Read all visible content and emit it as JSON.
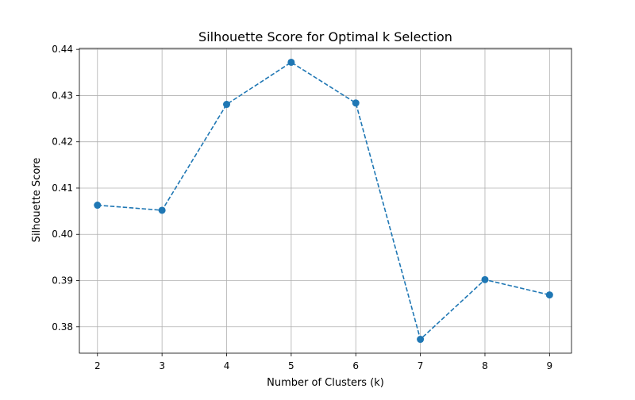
{
  "chart_data": {
    "type": "line",
    "title": "Silhouette Score for Optimal k Selection",
    "xlabel": "Number of Clusters (k)",
    "ylabel": "Silhouette Score",
    "x": [
      2,
      3,
      4,
      5,
      6,
      7,
      8,
      9
    ],
    "series": [
      {
        "values": [
          0.4063,
          0.4052,
          0.4281,
          0.4372,
          0.4284,
          0.3773,
          0.3902,
          0.3869
        ],
        "color": "#1f77b4",
        "line_style": "dashed",
        "marker": "circle"
      }
    ],
    "xlim": [
      1.72,
      9.34
    ],
    "ylim": [
      0.3743,
      0.4402
    ],
    "x_ticks": [
      "2",
      "3",
      "4",
      "5",
      "6",
      "7",
      "8",
      "9"
    ],
    "y_ticks": [
      "0.38",
      "0.39",
      "0.40",
      "0.41",
      "0.42",
      "0.43",
      "0.44"
    ],
    "y_tick_values": [
      0.38,
      0.39,
      0.4,
      0.41,
      0.42,
      0.43,
      0.44
    ],
    "grid": true,
    "grid_color": "#b0b0b0"
  }
}
